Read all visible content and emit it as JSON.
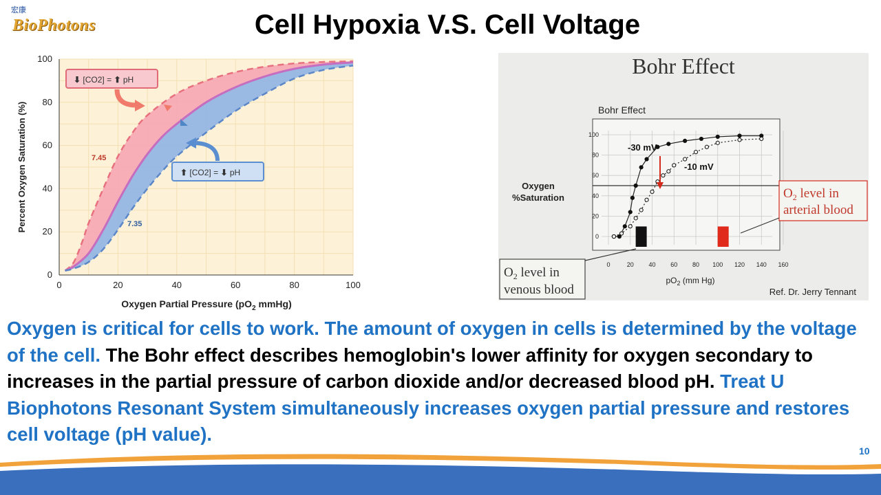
{
  "logo": {
    "mark": "宏康",
    "brand": "BioPhotons"
  },
  "title": "Cell Hypoxia V.S. Cell Voltage",
  "paragraph": {
    "blue1": "Oxygen is critical for cells to work. The amount of oxygen in cells is determined by the voltage of the cell.",
    "black1": " The Bohr effect describes hemoglobin's lower affinity for oxygen secondary to increases in the partial pressure of carbon dioxide and/or decreased blood pH.",
    "blue2": " Treat U Biophotons Resonant System simultaneously increases oxygen partial pressure and restores cell voltage (pH value)."
  },
  "page_number": "10",
  "colors": {
    "accent_blue": "#1f72c4",
    "pink_band": "#f6a6b4",
    "blue_band": "#8fb4e4",
    "chart_bg": "#fdf2d7",
    "footer_blue": "#3a6fbd",
    "footer_orange": "#f2a23a"
  },
  "chart_data": [
    {
      "type": "line",
      "ylabel": "Percent Oxygen Saturation (%)",
      "xlabel": "Oxygen Partial Pressure (pO2 mmHg)",
      "xlim": [
        0,
        100
      ],
      "ylim": [
        0,
        100
      ],
      "x_ticks": [
        "0",
        "20",
        "40",
        "60",
        "80",
        "100"
      ],
      "y_ticks": [
        "0",
        "20",
        "40",
        "60",
        "80",
        "100"
      ],
      "series": [
        {
          "name": "7.45",
          "style": "dashed",
          "color": "#e8707e",
          "points": [
            [
              2,
              2
            ],
            [
              5,
              6
            ],
            [
              8,
              16
            ],
            [
              10,
              24
            ],
            [
              15,
              40
            ],
            [
              20,
              55
            ],
            [
              25,
              66
            ],
            [
              30,
              74
            ],
            [
              40,
              84
            ],
            [
              50,
              90
            ],
            [
              60,
              94
            ],
            [
              70,
              96.5
            ],
            [
              80,
              98
            ],
            [
              90,
              98.7
            ],
            [
              100,
              99
            ]
          ]
        },
        {
          "name": "",
          "style": "solid",
          "color": "#c56ec0",
          "points": [
            [
              2,
              2
            ],
            [
              5,
              4
            ],
            [
              10,
              10
            ],
            [
              15,
              21
            ],
            [
              20,
              34
            ],
            [
              25,
              46
            ],
            [
              30,
              56
            ],
            [
              35,
              64
            ],
            [
              40,
              70
            ],
            [
              50,
              80
            ],
            [
              60,
              87
            ],
            [
              70,
              92
            ],
            [
              80,
              95.5
            ],
            [
              90,
              97.5
            ],
            [
              100,
              98.5
            ]
          ]
        },
        {
          "name": "7.35",
          "style": "dashed",
          "color": "#5b86c8",
          "points": [
            [
              2,
              2
            ],
            [
              5,
              3
            ],
            [
              10,
              6
            ],
            [
              15,
              12
            ],
            [
              20,
              21
            ],
            [
              25,
              31
            ],
            [
              30,
              40
            ],
            [
              35,
              48
            ],
            [
              40,
              55
            ],
            [
              50,
              66
            ],
            [
              60,
              76
            ],
            [
              70,
              84
            ],
            [
              80,
              91
            ],
            [
              90,
              95
            ],
            [
              100,
              97
            ]
          ]
        }
      ],
      "annotations": [
        {
          "arrow_up": "⬇",
          "text": "[CO2] = ",
          "arrow2": "⬆",
          "suffix": "pH"
        },
        {
          "arrow_up": "⬆",
          "text": "[CO2] = ",
          "arrow2": "⬇",
          "suffix": "pH"
        }
      ]
    },
    {
      "type": "scatter",
      "heading": "Bohr Effect",
      "subtitle": "Bohr Effect",
      "ylabel": "Oxygen %Saturation",
      "xlabel": "pO2 (mm Hg)",
      "xlim": [
        0,
        160
      ],
      "ylim": [
        0,
        100
      ],
      "x_ticks": [
        "0",
        "20",
        "40",
        "60",
        "80",
        "100",
        "120",
        "140",
        "160"
      ],
      "y_ticks": [
        "0",
        "20",
        "40",
        "60",
        "80",
        "100"
      ],
      "reference_line_y": 50,
      "series": [
        {
          "name": "-30 mV",
          "marker": "filled",
          "points": [
            [
              5,
              0
            ],
            [
              10,
              0
            ],
            [
              15,
              10
            ],
            [
              20,
              24
            ],
            [
              22,
              38
            ],
            [
              25,
              50
            ],
            [
              30,
              68
            ],
            [
              35,
              76
            ],
            [
              45,
              88
            ],
            [
              55,
              91
            ],
            [
              70,
              94
            ],
            [
              85,
              96
            ],
            [
              100,
              98
            ],
            [
              120,
              99
            ],
            [
              140,
              99
            ]
          ]
        },
        {
          "name": "-10 mV",
          "marker": "open",
          "points": [
            [
              5,
              0
            ],
            [
              12,
              3
            ],
            [
              20,
              10
            ],
            [
              25,
              18
            ],
            [
              30,
              26
            ],
            [
              35,
              36
            ],
            [
              40,
              44
            ],
            [
              45,
              54
            ],
            [
              50,
              60
            ],
            [
              55,
              64
            ],
            [
              60,
              70
            ],
            [
              70,
              76
            ],
            [
              80,
              83
            ],
            [
              90,
              88
            ],
            [
              100,
              92
            ],
            [
              120,
              95
            ],
            [
              140,
              96
            ]
          ]
        }
      ],
      "bars": [
        {
          "x": 30,
          "height": 20,
          "color": "#111111"
        },
        {
          "x": 105,
          "height": 20,
          "color": "#e02a1c"
        }
      ],
      "callouts": {
        "venous_line1": "O",
        "venous_sub": "2",
        "venous_line1b": " level in",
        "venous_line2": "venous blood",
        "arterial_line1": "O",
        "arterial_sub": "2",
        "arterial_line1b": " level in",
        "arterial_line2": "arterial blood"
      },
      "reference": "Ref. Dr. Jerry Tennant"
    }
  ]
}
